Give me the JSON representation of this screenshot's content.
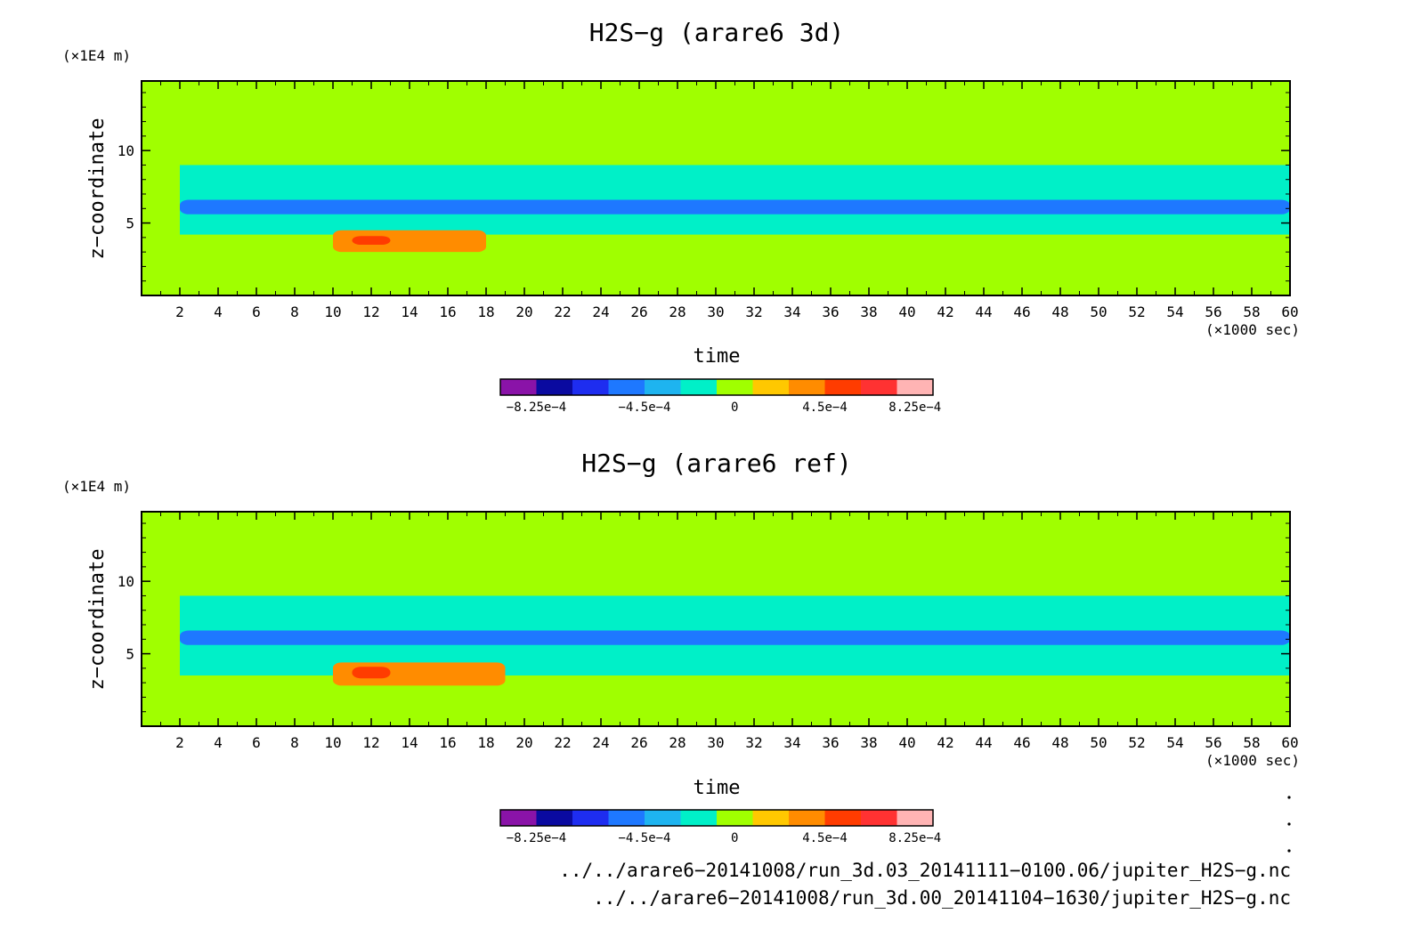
{
  "chart_data": [
    {
      "type": "heatmap",
      "title": "H2S−g (arare6 3d)",
      "xlabel": "time",
      "ylabel": "z−coordinate",
      "x_unit": "(×1000 sec)",
      "y_unit": "(×1E4 m)",
      "xlim": [
        0,
        60
      ],
      "ylim": [
        0,
        14.8
      ],
      "x_ticks": [
        "2",
        "4",
        "6",
        "8",
        "10",
        "12",
        "14",
        "16",
        "18",
        "20",
        "22",
        "24",
        "26",
        "28",
        "30",
        "32",
        "34",
        "36",
        "38",
        "40",
        "42",
        "44",
        "46",
        "48",
        "50",
        "52",
        "54",
        "56",
        "58",
        "60"
      ],
      "y_ticks": [
        "5",
        "10"
      ],
      "colorbar": {
        "levels": 11,
        "labels": [
          "−8.25e−4",
          "−4.5e−4",
          "0",
          "4.5e−4",
          "8.25e−4"
        ],
        "colors": [
          "#8a13a8",
          "#0a0aa0",
          "#1e2df0",
          "#1e78ff",
          "#1eb4f0",
          "#00f0c8",
          "#a0ff00",
          "#ffc800",
          "#ff8c00",
          "#ff3c00",
          "#ff3232",
          "#ffb4b4"
        ]
      },
      "features": [
        {
          "level": 0,
          "x": [
            0,
            60
          ],
          "z": [
            0,
            14.8
          ]
        },
        {
          "level": -1,
          "x": [
            2,
            60
          ],
          "z": [
            4.2,
            9.0
          ]
        },
        {
          "level": -3,
          "x": [
            2,
            60
          ],
          "z": [
            5.6,
            6.6
          ]
        },
        {
          "level": 2,
          "x": [
            10,
            18
          ],
          "z": [
            3.0,
            4.5
          ]
        },
        {
          "level": 3,
          "x": [
            11,
            13
          ],
          "z": [
            3.5,
            4.1
          ]
        }
      ]
    },
    {
      "type": "heatmap",
      "title": "H2S−g (arare6 ref)",
      "xlabel": "time",
      "ylabel": "z−coordinate",
      "x_unit": "(×1000 sec)",
      "y_unit": "(×1E4 m)",
      "xlim": [
        0,
        60
      ],
      "ylim": [
        0,
        14.8
      ],
      "x_ticks": [
        "2",
        "4",
        "6",
        "8",
        "10",
        "12",
        "14",
        "16",
        "18",
        "20",
        "22",
        "24",
        "26",
        "28",
        "30",
        "32",
        "34",
        "36",
        "38",
        "40",
        "42",
        "44",
        "46",
        "48",
        "50",
        "52",
        "54",
        "56",
        "58",
        "60"
      ],
      "y_ticks": [
        "5",
        "10"
      ],
      "colorbar": {
        "levels": 11,
        "labels": [
          "−8.25e−4",
          "−4.5e−4",
          "0",
          "4.5e−4",
          "8.25e−4"
        ],
        "colors": [
          "#8a13a8",
          "#0a0aa0",
          "#1e2df0",
          "#1e78ff",
          "#1eb4f0",
          "#00f0c8",
          "#a0ff00",
          "#ffc800",
          "#ff8c00",
          "#ff3c00",
          "#ff3232",
          "#ffb4b4"
        ]
      },
      "features": [
        {
          "level": 0,
          "x": [
            0,
            60
          ],
          "z": [
            0,
            14.8
          ]
        },
        {
          "level": -1,
          "x": [
            2,
            60
          ],
          "z": [
            3.5,
            9.0
          ]
        },
        {
          "level": -3,
          "x": [
            2,
            60
          ],
          "z": [
            5.6,
            6.6
          ]
        },
        {
          "level": 2,
          "x": [
            10,
            19
          ],
          "z": [
            2.8,
            4.4
          ]
        },
        {
          "level": 3,
          "x": [
            11,
            13
          ],
          "z": [
            3.3,
            4.1
          ]
        }
      ]
    }
  ],
  "files": [
    "../../arare6−20141008/run_3d.03_20141111−0100.06/jupiter_H2S−g.nc",
    "../../arare6−20141008/run_3d.00_20141104−1630/jupiter_H2S−g.nc"
  ]
}
